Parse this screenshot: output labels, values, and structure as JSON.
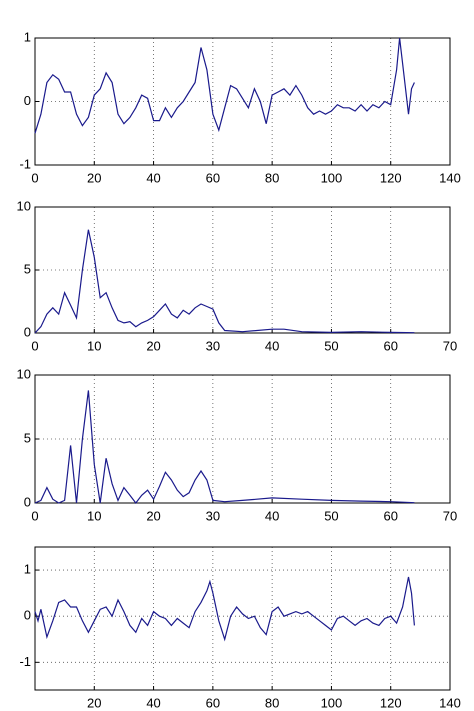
{
  "chart_data": [
    {
      "type": "line",
      "color": "#1a1a8c",
      "grid": true,
      "x": [
        0,
        2,
        4,
        6,
        8,
        10,
        12,
        14,
        16,
        18,
        20,
        22,
        24,
        26,
        28,
        30,
        32,
        34,
        36,
        38,
        40,
        42,
        44,
        46,
        48,
        50,
        52,
        54,
        56,
        58,
        60,
        62,
        64,
        66,
        68,
        70,
        72,
        74,
        76,
        78,
        80,
        82,
        84,
        86,
        88,
        90,
        92,
        94,
        96,
        98,
        100,
        102,
        104,
        106,
        108,
        110,
        112,
        114,
        116,
        118,
        120,
        122,
        123,
        124,
        126,
        127,
        128
      ],
      "values": [
        -0.5,
        -0.2,
        0.3,
        0.42,
        0.35,
        0.15,
        0.15,
        -0.2,
        -0.38,
        -0.25,
        0.1,
        0.2,
        0.45,
        0.3,
        -0.2,
        -0.35,
        -0.25,
        -0.1,
        0.1,
        0.05,
        -0.3,
        -0.3,
        -0.1,
        -0.25,
        -0.1,
        0.0,
        0.15,
        0.3,
        0.85,
        0.5,
        -0.2,
        -0.45,
        -0.1,
        0.25,
        0.2,
        0.05,
        -0.1,
        0.2,
        0.0,
        -0.35,
        0.1,
        0.15,
        0.2,
        0.1,
        0.25,
        0.1,
        -0.1,
        -0.2,
        -0.15,
        -0.2,
        -0.15,
        -0.05,
        -0.1,
        -0.1,
        -0.15,
        -0.05,
        -0.15,
        -0.05,
        -0.1,
        0.0,
        -0.05,
        0.5,
        1.0,
        0.6,
        -0.2,
        0.2,
        0.3
      ],
      "xlim": [
        0,
        140
      ],
      "xticks": [
        0,
        20,
        40,
        60,
        80,
        100,
        120,
        140
      ],
      "ylim": [
        -1,
        1
      ],
      "yticks": [
        -1,
        0,
        1
      ]
    },
    {
      "type": "line",
      "color": "#1a1a8c",
      "grid": true,
      "x": [
        0,
        1,
        2,
        3,
        4,
        5,
        6,
        7,
        8,
        9,
        10,
        11,
        12,
        13,
        14,
        15,
        16,
        17,
        18,
        19,
        20,
        21,
        22,
        23,
        24,
        25,
        26,
        27,
        28,
        29,
        30,
        31,
        32,
        35,
        40,
        42,
        45,
        50,
        55,
        60,
        64
      ],
      "values": [
        0,
        0.5,
        1.5,
        2.0,
        1.5,
        3.2,
        2.2,
        1.2,
        5,
        8.2,
        6,
        2.8,
        3.2,
        2,
        1,
        0.8,
        0.9,
        0.5,
        0.8,
        1.0,
        1.3,
        1.8,
        2.3,
        1.5,
        1.2,
        1.8,
        1.5,
        2.0,
        2.3,
        2.1,
        1.9,
        0.8,
        0.2,
        0.1,
        0.3,
        0.3,
        0.1,
        0.05,
        0.1,
        0.05,
        0.02
      ],
      "xlim": [
        0,
        70
      ],
      "xticks": [
        0,
        10,
        20,
        30,
        40,
        50,
        60,
        70
      ],
      "ylim": [
        0,
        10
      ],
      "yticks": [
        0,
        5,
        10
      ]
    },
    {
      "type": "line",
      "color": "#1a1a8c",
      "grid": true,
      "x": [
        0,
        1,
        2,
        3,
        4,
        5,
        6,
        7,
        8,
        9,
        10,
        11,
        12,
        13,
        14,
        15,
        16,
        17,
        18,
        19,
        20,
        21,
        22,
        23,
        24,
        25,
        26,
        27,
        28,
        29,
        30,
        32,
        35,
        40,
        45,
        50,
        55,
        60,
        64
      ],
      "values": [
        0,
        0.2,
        1.2,
        0.3,
        0,
        0.2,
        4.5,
        0,
        5,
        8.8,
        3,
        0,
        3.5,
        1.5,
        0.2,
        1.2,
        0.6,
        0,
        0.6,
        1.0,
        0.3,
        1.3,
        2.4,
        1.8,
        1.0,
        0.5,
        0.8,
        1.8,
        2.5,
        1.8,
        0.2,
        0.1,
        0.2,
        0.4,
        0.3,
        0.2,
        0.15,
        0.1,
        0.02
      ],
      "xlim": [
        0,
        70
      ],
      "xticks": [
        0,
        10,
        20,
        30,
        40,
        50,
        60,
        70
      ],
      "ylim": [
        0,
        10
      ],
      "yticks": [
        0,
        5,
        10
      ]
    },
    {
      "type": "line",
      "color": "#1a1a8c",
      "grid": true,
      "x": [
        0,
        1,
        2,
        4,
        6,
        8,
        10,
        12,
        14,
        16,
        18,
        20,
        22,
        24,
        26,
        28,
        30,
        32,
        34,
        36,
        38,
        40,
        42,
        44,
        46,
        48,
        50,
        52,
        54,
        56,
        58,
        59,
        60,
        62,
        64,
        66,
        68,
        70,
        72,
        74,
        76,
        78,
        80,
        82,
        84,
        86,
        88,
        90,
        92,
        94,
        96,
        98,
        100,
        102,
        104,
        106,
        108,
        110,
        112,
        114,
        116,
        118,
        120,
        122,
        124,
        126,
        127,
        128
      ],
      "values": [
        0.1,
        -0.1,
        0.15,
        -0.45,
        -0.1,
        0.3,
        0.35,
        0.2,
        0.2,
        -0.1,
        -0.35,
        -0.1,
        0.15,
        0.2,
        0.0,
        0.35,
        0.1,
        -0.2,
        -0.35,
        -0.05,
        -0.2,
        0.1,
        0.0,
        -0.05,
        -0.2,
        -0.05,
        -0.15,
        -0.25,
        0.1,
        0.3,
        0.55,
        0.75,
        0.5,
        -0.1,
        -0.5,
        0.0,
        0.2,
        0.05,
        -0.05,
        0.0,
        -0.25,
        -0.4,
        0.1,
        0.2,
        0.0,
        0.05,
        0.1,
        0.05,
        0.1,
        0.0,
        -0.1,
        -0.2,
        -0.3,
        -0.05,
        0.0,
        -0.1,
        -0.2,
        -0.1,
        -0.05,
        -0.15,
        -0.2,
        -0.05,
        0.0,
        -0.15,
        0.2,
        0.85,
        0.5,
        -0.2
      ],
      "xlim": [
        0,
        140
      ],
      "xticks": [
        20,
        40,
        60,
        80,
        100,
        120,
        140
      ],
      "ylim": [
        -1.6,
        1.5
      ],
      "yticks": [
        -1,
        0,
        1
      ]
    }
  ]
}
